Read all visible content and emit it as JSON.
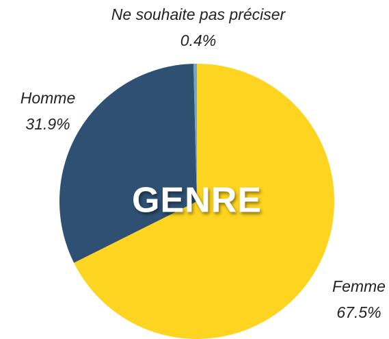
{
  "chart_data": {
    "type": "pie",
    "center_label": "GENRE",
    "categories": [
      "Femme",
      "Homme",
      "Ne souhaite pas préciser"
    ],
    "values": [
      67.5,
      31.9,
      0.4
    ],
    "value_labels": [
      "67.5%",
      "31.9%",
      "0.4%"
    ],
    "colors": [
      "#fdd41f",
      "#2e5073",
      "#7aa3c0"
    ],
    "start_angle": 0,
    "direction": "clockwise"
  }
}
